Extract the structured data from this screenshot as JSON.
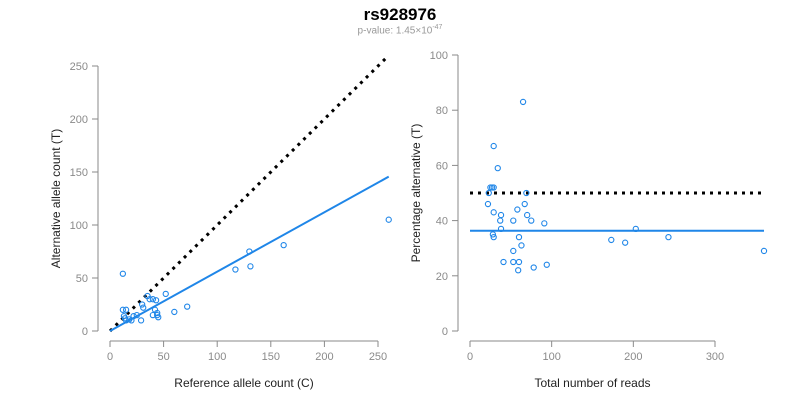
{
  "title": "rs928976",
  "subtitle": {
    "prefix": "p-value: 1.45×10",
    "exponent": "-47"
  },
  "colors": {
    "points": "#1f86e8",
    "fit": "#1f86e8",
    "reference": "#000000",
    "axis": "#8a8a8a"
  },
  "chart_data": [
    {
      "type": "scatter",
      "xlabel": "Reference allele count (C)",
      "ylabel": "Alternative allele count (T)",
      "xlim": [
        0,
        260
      ],
      "ylim": [
        0,
        250
      ],
      "xticks": [
        "0",
        "50",
        "100",
        "150",
        "200",
        "250"
      ],
      "yticks": [
        "0",
        "50",
        "100",
        "150",
        "200",
        "250"
      ],
      "points": [
        [
          12,
          54
        ],
        [
          12,
          20
        ],
        [
          15,
          20
        ],
        [
          13,
          14
        ],
        [
          14,
          12
        ],
        [
          15,
          10
        ],
        [
          18,
          11
        ],
        [
          20,
          10
        ],
        [
          22,
          14
        ],
        [
          25,
          15
        ],
        [
          29,
          10
        ],
        [
          30,
          25
        ],
        [
          31,
          22
        ],
        [
          35,
          33
        ],
        [
          37,
          30
        ],
        [
          40,
          30
        ],
        [
          40,
          15
        ],
        [
          42,
          20
        ],
        [
          43,
          29
        ],
        [
          44,
          17
        ],
        [
          45,
          13
        ],
        [
          44,
          15
        ],
        [
          52,
          35
        ],
        [
          60,
          18
        ],
        [
          72,
          23
        ],
        [
          117,
          58
        ],
        [
          130,
          75
        ],
        [
          131,
          61
        ],
        [
          162,
          81
        ],
        [
          260,
          105
        ]
      ],
      "fit_line": {
        "slope": 0.56,
        "intercept": 0
      },
      "reference_line": {
        "slope": 1,
        "intercept": 0
      }
    },
    {
      "type": "scatter",
      "xlabel": "Total number of reads",
      "ylabel": "Percentage alternative  (T)",
      "xlim": [
        0,
        360
      ],
      "ylim": [
        0,
        100
      ],
      "xticks": [
        "0",
        "100",
        "200",
        "300"
      ],
      "yticks": [
        "0",
        "20",
        "40",
        "60",
        "80",
        "100"
      ],
      "points": [
        [
          65,
          83
        ],
        [
          29,
          67
        ],
        [
          34,
          59
        ],
        [
          25,
          52
        ],
        [
          27,
          52
        ],
        [
          29,
          52
        ],
        [
          23,
          50
        ],
        [
          69,
          50
        ],
        [
          22,
          46
        ],
        [
          67,
          46
        ],
        [
          29,
          43
        ],
        [
          58,
          44
        ],
        [
          38,
          42
        ],
        [
          37,
          40
        ],
        [
          70,
          42
        ],
        [
          75,
          40
        ],
        [
          53,
          40
        ],
        [
          91,
          39
        ],
        [
          38,
          37
        ],
        [
          28,
          35
        ],
        [
          29,
          34
        ],
        [
          60,
          34
        ],
        [
          63,
          31
        ],
        [
          53,
          29
        ],
        [
          41,
          25
        ],
        [
          53,
          25
        ],
        [
          60,
          25
        ],
        [
          59,
          22
        ],
        [
          78,
          23
        ],
        [
          94,
          24
        ],
        [
          173,
          33
        ],
        [
          190,
          32
        ],
        [
          203,
          37
        ],
        [
          243,
          34
        ],
        [
          360,
          29
        ]
      ],
      "fit_line": {
        "y": 36.3
      },
      "reference_line": {
        "y": 50
      }
    }
  ]
}
